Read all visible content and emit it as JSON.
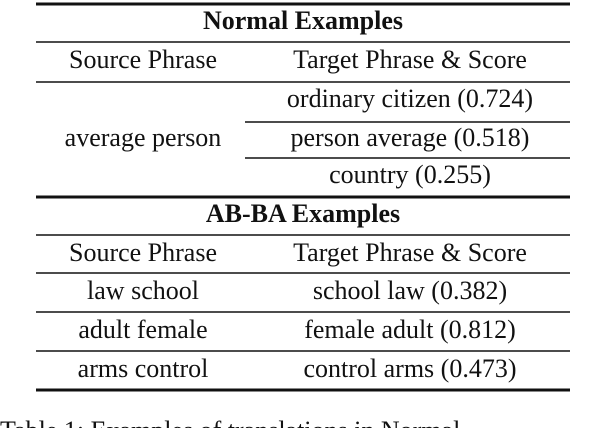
{
  "tables": [
    {
      "title": "Normal Examples",
      "header": [
        "Source Phrase",
        "Target Phrase & Score"
      ],
      "rows": [
        {
          "source": "average person",
          "targets": [
            "ordinary citizen (0.724)",
            "person average (0.518)",
            "country (0.255)"
          ]
        }
      ]
    },
    {
      "title": "AB-BA Examples",
      "header": [
        "Source Phrase",
        "Target Phrase & Score"
      ],
      "rows": [
        {
          "source": "law school",
          "targets": [
            "school law (0.382)"
          ]
        },
        {
          "source": "adult female",
          "targets": [
            "female adult (0.812)"
          ]
        },
        {
          "source": "arms control",
          "targets": [
            "control arms (0.473)"
          ]
        }
      ]
    }
  ],
  "caption": "Table 1: Examples of translations in Normal"
}
